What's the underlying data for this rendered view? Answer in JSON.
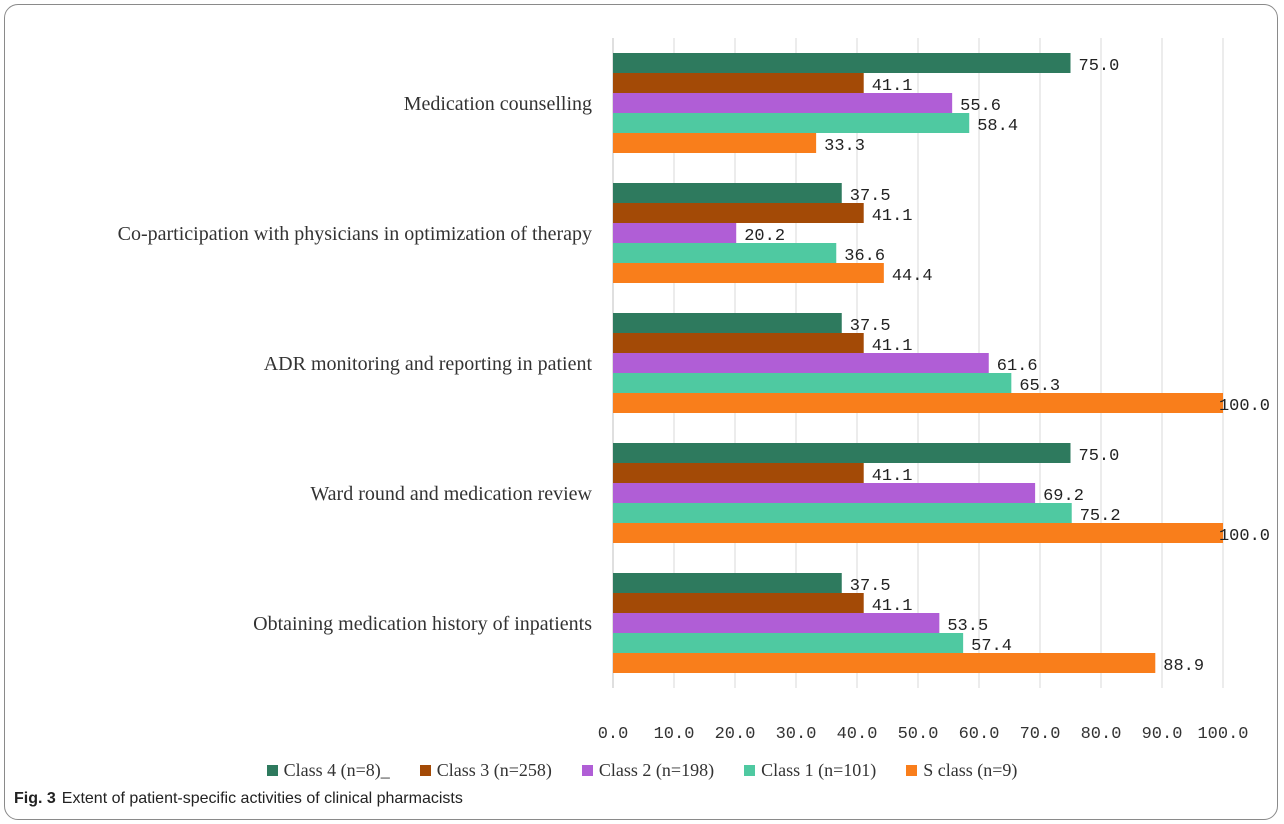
{
  "caption": {
    "label": "Fig. 3",
    "text": "Extent of patient-specific activities of clinical pharmacists"
  },
  "chart_data": {
    "type": "bar",
    "orientation": "horizontal",
    "categories": [
      "Medication counselling",
      "Co-participation with physicians in optimization of therapy",
      "ADR monitoring and reporting in patient",
      "Ward round and medication review",
      "Obtaining medication history of inpatients"
    ],
    "series": [
      {
        "name": "Class 4 (n=8)_",
        "color": "#2e7a5e",
        "values": [
          75.0,
          37.5,
          37.5,
          75.0,
          37.5
        ]
      },
      {
        "name": "Class 3 (n=258)",
        "color": "#a34a06",
        "values": [
          41.1,
          41.1,
          41.1,
          41.1,
          41.1
        ]
      },
      {
        "name": "Class 2 (n=198)",
        "color": "#b05ed6",
        "values": [
          55.6,
          20.2,
          61.6,
          69.2,
          53.5
        ]
      },
      {
        "name": "Class 1 (n=101)",
        "color": "#4fc9a1",
        "values": [
          58.4,
          36.6,
          65.3,
          75.2,
          57.4
        ]
      },
      {
        "name": "S class (n=9)",
        "color": "#f97e1b",
        "values": [
          33.3,
          44.4,
          100.0,
          100.0,
          88.9
        ]
      }
    ],
    "xlim": [
      0,
      100
    ],
    "xticks": [
      "0.0",
      "10.0",
      "20.0",
      "30.0",
      "40.0",
      "50.0",
      "60.0",
      "70.0",
      "80.0",
      "90.0",
      "100.0"
    ],
    "grid": true,
    "legend_position": "bottom"
  }
}
